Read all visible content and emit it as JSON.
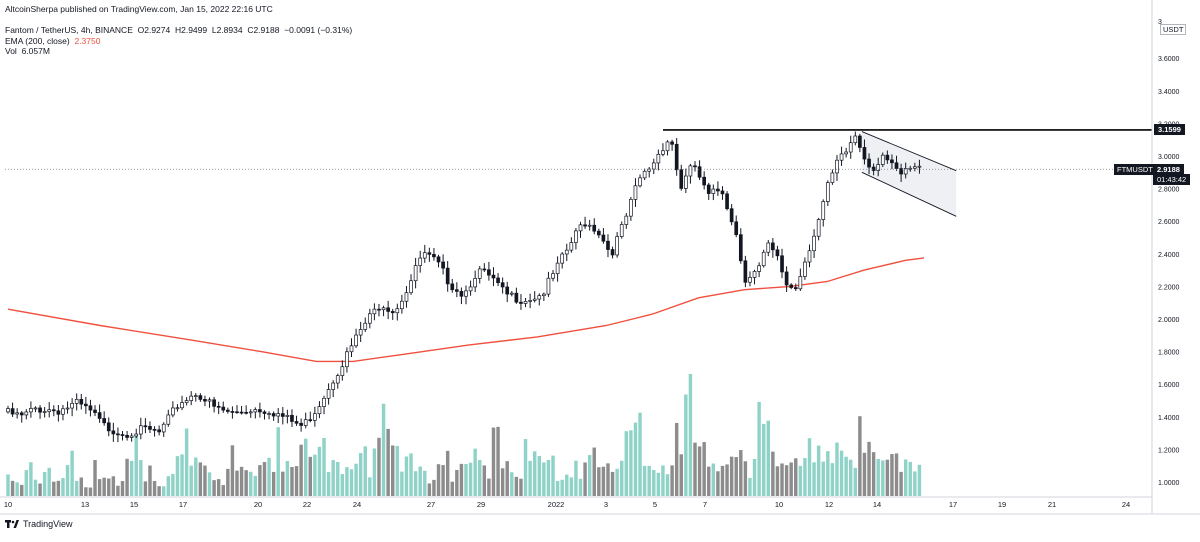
{
  "header": {
    "published_line": "AltcoinSherpa published on TradingView.com, Jan 15, 2022 22:16 UTC",
    "symbol_line": "Fantom / TetherUS, 4h, BINANCE",
    "ohlc": {
      "o_label": "O",
      "o": "2.9274",
      "h_label": "H",
      "h": "2.9499",
      "l_label": "L",
      "l": "2.8934",
      "c_label": "C",
      "c": "2.9188",
      "change": "−0.0091 (−0.31%)"
    },
    "ema_label": "EMA (200, close)",
    "ema_value": "2.3750",
    "vol_label": "Vol",
    "vol_value": "6.057M"
  },
  "footer": {
    "brand": "TradingView"
  },
  "badges": {
    "currency": "USDT",
    "resistance_price": "3.1599",
    "symbol_tag": "FTMUSDT",
    "last_price": "2.9188",
    "countdown": "01:43:42",
    "axis_top_fragment": "3"
  },
  "colors": {
    "up": "#131722",
    "down": "#131722",
    "up_fill": "#ffffff",
    "ema": "#f0513f",
    "vol_up": "#8fd3c8",
    "vol_down": "#8c8c8c",
    "line": "#000000",
    "channel_fill": "#eef0f3",
    "grid_text": "#131722"
  },
  "chart_data": {
    "type": "candlestick",
    "title": "Fantom / TetherUS, 4h, BINANCE",
    "yticks": [
      "3.6000",
      "3.4000",
      "3.2000",
      "3.0000",
      "2.8000",
      "2.6000",
      "2.4000",
      "2.2000",
      "2.0000",
      "1.8000",
      "1.6000",
      "1.4000",
      "1.2000",
      "1.0000"
    ],
    "xticks": [
      "10",
      "13",
      "15",
      "17",
      "20",
      "22",
      "24",
      "27",
      "29",
      "2022",
      "3",
      "5",
      "7",
      "10",
      "12",
      "14",
      "17",
      "19",
      "21",
      "24"
    ],
    "ylim": [
      0.94,
      3.72
    ],
    "price_path": [
      {
        "t": 0,
        "p": 1.43
      },
      {
        "t": 8,
        "p": 1.4
      },
      {
        "t": 14,
        "p": 1.45
      },
      {
        "t": 24,
        "p": 1.44
      },
      {
        "t": 32,
        "p": 1.48
      },
      {
        "t": 38,
        "p": 1.43
      },
      {
        "t": 44,
        "p": 1.34
      },
      {
        "t": 52,
        "p": 1.3
      },
      {
        "t": 62,
        "p": 1.32
      },
      {
        "t": 68,
        "p": 1.3
      },
      {
        "t": 76,
        "p": 1.48
      },
      {
        "t": 84,
        "p": 1.55
      },
      {
        "t": 92,
        "p": 1.45
      },
      {
        "t": 100,
        "p": 1.42
      },
      {
        "t": 108,
        "p": 1.45
      },
      {
        "t": 116,
        "p": 1.44
      },
      {
        "t": 124,
        "p": 1.38
      },
      {
        "t": 130,
        "p": 1.34
      },
      {
        "t": 136,
        "p": 1.45
      },
      {
        "t": 142,
        "p": 1.6
      },
      {
        "t": 148,
        "p": 1.75
      },
      {
        "t": 156,
        "p": 1.95
      },
      {
        "t": 164,
        "p": 2.1
      },
      {
        "t": 170,
        "p": 2.05
      },
      {
        "t": 176,
        "p": 2.2
      },
      {
        "t": 182,
        "p": 2.4
      },
      {
        "t": 188,
        "p": 2.35
      },
      {
        "t": 194,
        "p": 2.22
      },
      {
        "t": 200,
        "p": 2.15
      },
      {
        "t": 206,
        "p": 2.3
      },
      {
        "t": 212,
        "p": 2.25
      },
      {
        "t": 218,
        "p": 2.15
      },
      {
        "t": 226,
        "p": 2.12
      },
      {
        "t": 234,
        "p": 2.15
      },
      {
        "t": 240,
        "p": 2.3
      },
      {
        "t": 246,
        "p": 2.45
      },
      {
        "t": 252,
        "p": 2.6
      },
      {
        "t": 258,
        "p": 2.55
      },
      {
        "t": 264,
        "p": 2.4
      },
      {
        "t": 270,
        "p": 2.6
      },
      {
        "t": 276,
        "p": 2.85
      },
      {
        "t": 282,
        "p": 2.95
      },
      {
        "t": 286,
        "p": 3.05
      },
      {
        "t": 290,
        "p": 3.12
      },
      {
        "t": 294,
        "p": 2.8
      },
      {
        "t": 300,
        "p": 2.95
      },
      {
        "t": 306,
        "p": 2.75
      },
      {
        "t": 312,
        "p": 2.8
      },
      {
        "t": 318,
        "p": 2.55
      },
      {
        "t": 322,
        "p": 2.25
      },
      {
        "t": 328,
        "p": 2.3
      },
      {
        "t": 332,
        "p": 2.45
      },
      {
        "t": 336,
        "p": 2.38
      },
      {
        "t": 340,
        "p": 2.22
      },
      {
        "t": 344,
        "p": 2.18
      },
      {
        "t": 348,
        "p": 2.35
      },
      {
        "t": 354,
        "p": 2.6
      },
      {
        "t": 358,
        "p": 2.8
      },
      {
        "t": 362,
        "p": 2.95
      },
      {
        "t": 366,
        "p": 3.02
      },
      {
        "t": 370,
        "p": 3.13
      },
      {
        "t": 374,
        "p": 3.0
      },
      {
        "t": 378,
        "p": 2.92
      },
      {
        "t": 382,
        "p": 3.02
      },
      {
        "t": 386,
        "p": 2.93
      },
      {
        "t": 390,
        "p": 2.88
      },
      {
        "t": 394,
        "p": 2.92
      },
      {
        "t": 398,
        "p": 2.92
      }
    ],
    "ema200": [
      {
        "t": 0,
        "p": 2.06
      },
      {
        "t": 40,
        "p": 1.96
      },
      {
        "t": 80,
        "p": 1.87
      },
      {
        "t": 110,
        "p": 1.8
      },
      {
        "t": 134,
        "p": 1.74
      },
      {
        "t": 150,
        "p": 1.74
      },
      {
        "t": 170,
        "p": 1.78
      },
      {
        "t": 200,
        "p": 1.84
      },
      {
        "t": 230,
        "p": 1.89
      },
      {
        "t": 260,
        "p": 1.96
      },
      {
        "t": 280,
        "p": 2.03
      },
      {
        "t": 300,
        "p": 2.13
      },
      {
        "t": 320,
        "p": 2.18
      },
      {
        "t": 340,
        "p": 2.2
      },
      {
        "t": 356,
        "p": 2.23
      },
      {
        "t": 372,
        "p": 2.3
      },
      {
        "t": 390,
        "p": 2.36
      },
      {
        "t": 398,
        "p": 2.375
      }
    ],
    "resistance": 3.1599,
    "channel": {
      "upper": [
        {
          "t": 371,
          "p": 3.15
        },
        {
          "t": 412,
          "p": 2.91
        }
      ],
      "lower": [
        {
          "t": 371,
          "p": 2.9
        },
        {
          "t": 412,
          "p": 2.63
        }
      ]
    },
    "volume_profile": [
      0.15,
      0.12,
      0.2,
      0.1,
      0.25,
      0.18,
      0.12,
      0.3,
      0.15,
      0.1,
      0.35,
      0.2,
      0.15,
      0.12,
      0.25,
      0.4,
      0.18,
      0.2,
      0.12,
      0.15,
      0.3,
      0.5,
      0.25,
      0.2,
      0.18,
      0.12,
      0.35,
      0.22,
      0.18,
      0.15,
      0.25,
      0.3,
      0.45,
      0.28,
      0.2,
      0.35,
      0.25,
      0.4,
      0.3,
      0.22,
      0.18,
      0.25,
      0.3,
      0.2,
      0.35,
      0.55,
      0.4,
      0.3,
      0.25,
      0.2,
      0.15,
      0.22,
      0.3,
      0.18,
      0.25,
      0.35,
      0.28,
      0.2,
      0.45,
      0.3,
      0.25,
      0.2,
      0.35,
      0.5,
      0.3,
      0.25,
      0.2,
      0.15,
      0.22,
      0.28,
      0.35,
      0.25,
      0.2,
      0.3,
      0.45,
      0.6,
      0.4,
      0.3,
      0.25,
      0.2,
      0.55,
      0.95,
      0.45,
      0.35,
      0.4,
      0.3,
      0.25,
      0.35,
      0.3,
      0.22,
      0.7,
      0.5,
      0.25,
      0.2,
      0.28,
      0.35,
      0.4,
      0.3,
      0.45,
      0.35,
      0.3,
      0.38,
      0.5,
      0.4,
      0.3,
      0.25,
      0.35,
      0.3,
      0.22,
      0.2
    ]
  }
}
